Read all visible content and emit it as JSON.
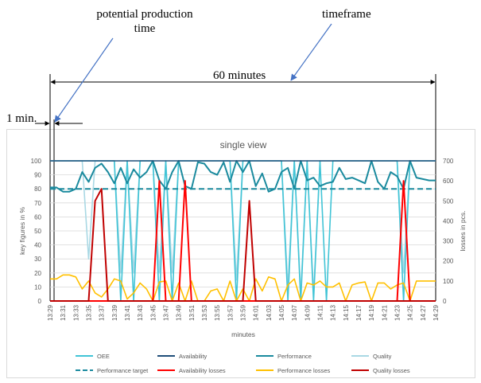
{
  "annotations": {
    "potential_production_time": "potential production time",
    "timeframe": "timeframe",
    "sixty_minutes": "60 minutes",
    "one_minute": "1 min."
  },
  "colors": {
    "oee": "#41c4d6",
    "availability": "#1f4e79",
    "performance": "#1a8a9e",
    "quality": "#a9d8e4",
    "performance_target": "#1a8a9e",
    "availability_losses": "#ff0000",
    "performance_losses": "#ffc000",
    "quality_losses": "#c00000",
    "annotation": "#000000",
    "annotation_arrow": "#4472c4"
  },
  "chart_data": {
    "type": "line",
    "title": "single view",
    "xlabel": "minutes",
    "ylabel_left": "key figures in %",
    "ylabel_right": "losses in pcs.",
    "ylim_left": [
      0,
      100
    ],
    "ylim_right": [
      0,
      700
    ],
    "yticks_left": [
      "0",
      "10",
      "20",
      "30",
      "40",
      "50",
      "60",
      "70",
      "80",
      "90",
      "100"
    ],
    "yticks_right": [
      "0",
      "100",
      "200",
      "300",
      "400",
      "500",
      "600",
      "700"
    ],
    "x_tick_labels": [
      "13:29",
      "13:31",
      "13:33",
      "13:35",
      "13:37",
      "13:39",
      "13:41",
      "13:43",
      "13:45",
      "13:47",
      "13:49",
      "13:51",
      "13:53",
      "13:55",
      "13:57",
      "13:59",
      "14:01",
      "14:03",
      "14:05",
      "14:07",
      "14:09",
      "14:11",
      "14:13",
      "14:15",
      "14:17",
      "14:19",
      "14:21",
      "14:23",
      "14:25",
      "14:27",
      "14:29"
    ],
    "legend_placement": "bottom",
    "x_minutes": [
      0,
      1,
      2,
      3,
      4,
      5,
      6,
      7,
      8,
      9,
      10,
      11,
      12,
      13,
      14,
      15,
      16,
      17,
      18,
      19,
      20,
      21,
      22,
      23,
      24,
      25,
      26,
      27,
      28,
      29,
      30,
      31,
      32,
      33,
      34,
      35,
      36,
      37,
      38,
      39,
      40,
      41,
      42,
      43,
      44,
      45,
      46,
      47,
      48,
      49,
      50,
      51,
      52,
      53,
      54,
      55,
      56,
      57,
      58,
      59,
      60
    ],
    "series": [
      {
        "name": "OEE",
        "axis": "left",
        "style": "solid",
        "values": [
          100,
          100,
          100,
          100,
          100,
          100,
          100,
          100,
          100,
          100,
          100,
          0,
          100,
          0,
          100,
          100,
          100,
          0,
          100,
          0,
          100,
          100,
          100,
          100,
          100,
          100,
          100,
          100,
          100,
          0,
          100,
          100,
          100,
          100,
          100,
          100,
          100,
          0,
          100,
          0,
          100,
          0,
          100,
          0,
          100,
          100,
          100,
          100,
          100,
          100,
          100,
          100,
          100,
          100,
          100,
          0,
          100,
          100,
          100,
          100,
          100
        ]
      },
      {
        "name": "Availability",
        "axis": "left",
        "style": "solid",
        "values": [
          100,
          100,
          100,
          100,
          100,
          100,
          100,
          100,
          100,
          100,
          100,
          100,
          100,
          100,
          100,
          100,
          100,
          100,
          100,
          100,
          100,
          100,
          100,
          100,
          100,
          100,
          100,
          100,
          100,
          100,
          100,
          100,
          100,
          100,
          100,
          100,
          100,
          100,
          100,
          100,
          100,
          100,
          100,
          100,
          100,
          100,
          100,
          100,
          100,
          100,
          100,
          100,
          100,
          100,
          100,
          100,
          100,
          100,
          100,
          100,
          100
        ]
      },
      {
        "name": "Performance",
        "axis": "left",
        "style": "solid",
        "values": [
          81,
          81,
          78,
          78,
          80,
          92,
          85,
          95,
          98,
          92,
          84,
          95,
          84,
          94,
          88,
          92,
          100,
          86,
          80,
          92,
          100,
          82,
          80,
          99,
          98,
          92,
          90,
          99,
          85,
          100,
          92,
          100,
          82,
          91,
          78,
          80,
          92,
          95,
          80,
          100,
          86,
          88,
          82,
          84,
          85,
          95,
          87,
          88,
          86,
          84,
          100,
          85,
          80,
          92,
          89,
          80,
          100,
          88,
          87,
          86,
          86
        ]
      },
      {
        "name": "Quality",
        "axis": "left",
        "style": "solid",
        "values": [
          100,
          100,
          100,
          100,
          100,
          100,
          30,
          100,
          100,
          100,
          100,
          20,
          100,
          20,
          100,
          100,
          100,
          20,
          100,
          20,
          100,
          100,
          100,
          100,
          100,
          100,
          100,
          100,
          100,
          15,
          100,
          100,
          100,
          100,
          100,
          100,
          100,
          10,
          100,
          5,
          100,
          5,
          100,
          100,
          100,
          100,
          100,
          100,
          100,
          100,
          100,
          100,
          100,
          100,
          100,
          20,
          100,
          100,
          100,
          100,
          100
        ]
      },
      {
        "name": "Performance target",
        "axis": "left",
        "style": "dashed",
        "values": [
          80,
          80,
          80,
          80,
          80,
          80,
          80,
          80,
          80,
          80,
          80,
          80,
          80,
          80,
          80,
          80,
          80,
          80,
          80,
          80,
          80,
          80,
          80,
          80,
          80,
          80,
          80,
          80,
          80,
          80,
          80,
          80,
          80,
          80,
          80,
          80,
          80,
          80,
          80,
          80,
          80,
          80,
          80,
          80,
          80,
          80,
          80,
          80,
          80,
          80,
          80,
          80,
          80,
          80,
          80,
          80,
          80,
          80,
          80,
          80,
          80
        ]
      },
      {
        "name": "Availability losses",
        "axis": "right",
        "style": "solid",
        "values": [
          0,
          0,
          0,
          0,
          0,
          0,
          0,
          0,
          0,
          0,
          0,
          0,
          0,
          0,
          0,
          0,
          0,
          600,
          0,
          0,
          0,
          600,
          0,
          0,
          0,
          0,
          0,
          0,
          0,
          0,
          0,
          0,
          0,
          0,
          0,
          0,
          0,
          0,
          0,
          0,
          0,
          0,
          0,
          0,
          0,
          0,
          0,
          0,
          0,
          0,
          0,
          0,
          0,
          0,
          0,
          600,
          0,
          0,
          0,
          0,
          0
        ]
      },
      {
        "name": "Performance losses",
        "axis": "right",
        "style": "solid",
        "values": [
          110,
          110,
          130,
          130,
          120,
          60,
          100,
          40,
          20,
          60,
          110,
          100,
          10,
          40,
          90,
          60,
          0,
          95,
          100,
          0,
          90,
          0,
          100,
          0,
          0,
          50,
          60,
          0,
          100,
          0,
          60,
          0,
          110,
          50,
          120,
          110,
          0,
          80,
          110,
          0,
          90,
          80,
          100,
          70,
          70,
          90,
          0,
          80,
          90,
          95,
          0,
          90,
          90,
          60,
          80,
          90,
          0,
          100,
          100,
          100,
          100
        ]
      },
      {
        "name": "Quality losses",
        "axis": "right",
        "style": "solid",
        "values": [
          0,
          0,
          0,
          0,
          0,
          0,
          0,
          500,
          560,
          0,
          0,
          0,
          0,
          0,
          0,
          0,
          0,
          0,
          0,
          0,
          0,
          0,
          0,
          0,
          0,
          0,
          0,
          0,
          0,
          0,
          0,
          500,
          0,
          0,
          0,
          0,
          0,
          0,
          0,
          0,
          0,
          0,
          0,
          0,
          0,
          0,
          0,
          0,
          0,
          0,
          0,
          0,
          0,
          0,
          0,
          0,
          0,
          0,
          0,
          0,
          0
        ]
      }
    ]
  }
}
